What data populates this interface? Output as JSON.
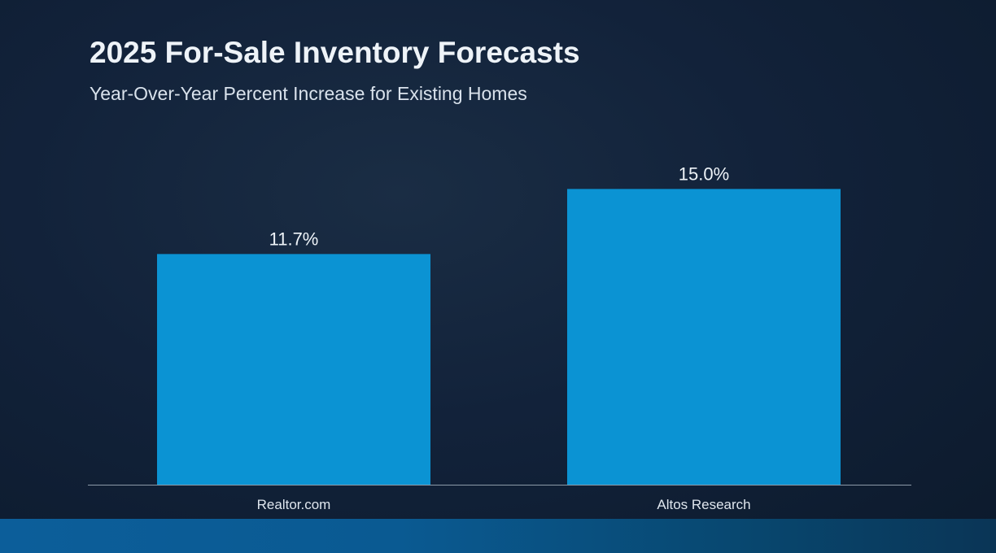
{
  "colors": {
    "background": "#12223a",
    "bar": "#0b93d3",
    "text": "#eef3f8",
    "axis": "#8c9aa8",
    "footer_band": "#0c5e9a"
  },
  "chart_data": {
    "type": "bar",
    "title": "2025 For-Sale Inventory Forecasts",
    "subtitle": "Year-Over-Year Percent Increase for Existing Homes",
    "categories": [
      "Realtor.com",
      "Altos Research"
    ],
    "values": [
      11.7,
      15.0
    ],
    "data_labels": [
      "11.7%",
      "15.0%"
    ],
    "unit": "%",
    "ylim": [
      0,
      16.5
    ],
    "grid": false,
    "legend": "none"
  }
}
